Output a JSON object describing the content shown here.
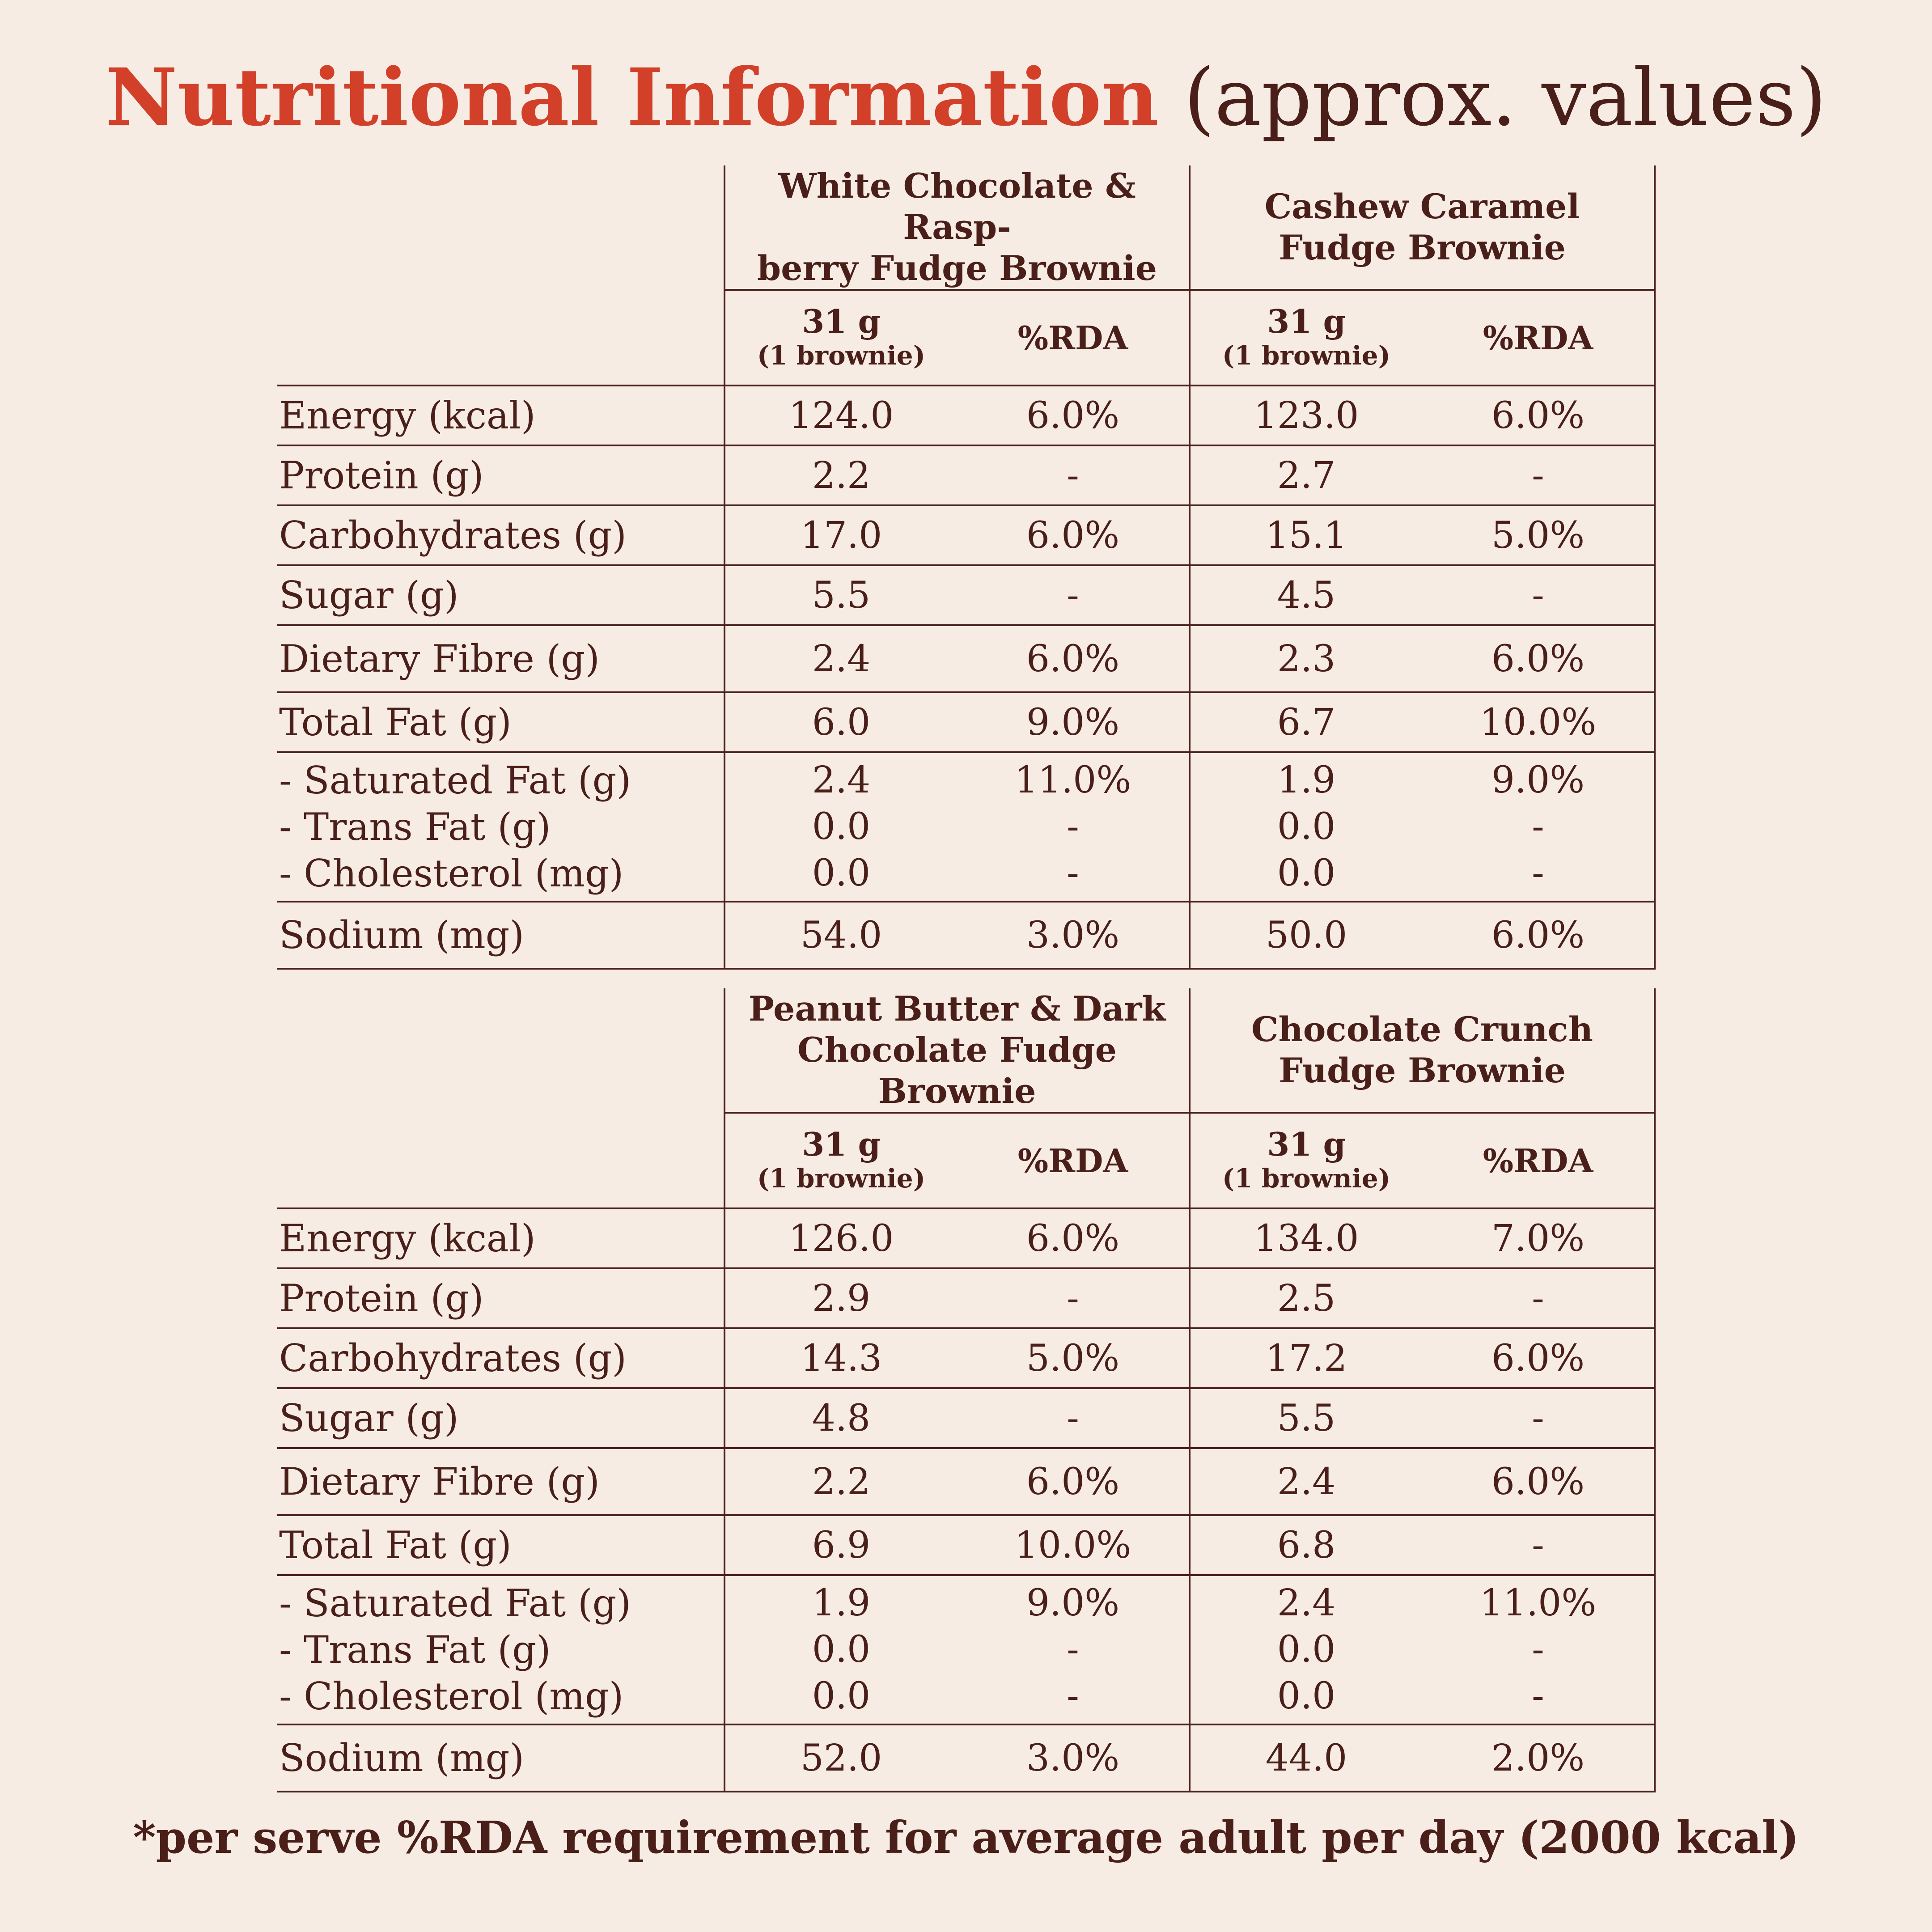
{
  "title": {
    "main": "Nutritional Information",
    "sub": "(approx. values)"
  },
  "serving_label": {
    "line1": "31 g",
    "line2": "(1 brownie)"
  },
  "rda_label": "%RDA",
  "tables": [
    {
      "products": [
        {
          "name_line1": "White Chocolate & Rasp-",
          "name_line2": "berry Fudge Brownie"
        },
        {
          "name_line1": "Cashew Caramel",
          "name_line2": "Fudge Brownie"
        }
      ],
      "rows": [
        {
          "label": "Energy (kcal)",
          "p1": "124.0",
          "r1": "6.0%",
          "p2": "123.0",
          "r2": "6.0%"
        },
        {
          "label": "Protein (g)",
          "p1": "2.2",
          "r1": "-",
          "p2": "2.7",
          "r2": "-"
        },
        {
          "label": "Carbohydrates (g)",
          "p1": "17.0",
          "r1": "6.0%",
          "p2": "15.1",
          "r2": "5.0%"
        },
        {
          "label": "Sugar (g)",
          "p1": "5.5",
          "r1": "-",
          "p2": "4.5",
          "r2": "-"
        },
        {
          "label": "Dietary Fibre (g)",
          "p1": "2.4",
          "r1": "6.0%",
          "p2": "2.3",
          "r2": "6.0%"
        },
        {
          "label": "Total Fat (g)",
          "p1": "6.0",
          "r1": "9.0%",
          "p2": "6.7",
          "r2": "10.0%"
        }
      ],
      "fat_group": [
        {
          "label": "- Saturated Fat (g)",
          "p1": "2.4",
          "r1": "11.0%",
          "p2": "1.9",
          "r2": "9.0%"
        },
        {
          "label": "- Trans Fat (g)",
          "p1": "0.0",
          "r1": "-",
          "p2": "0.0",
          "r2": "-"
        },
        {
          "label": "- Cholesterol (mg)",
          "p1": "0.0",
          "r1": "-",
          "p2": "0.0",
          "r2": "-"
        }
      ],
      "sodium": {
        "label": "Sodium (mg)",
        "p1": "54.0",
        "r1": "3.0%",
        "p2": "50.0",
        "r2": "6.0%"
      }
    },
    {
      "products": [
        {
          "name_line1": "Peanut Butter & Dark",
          "name_line2": "Chocolate Fudge Brownie"
        },
        {
          "name_line1": "Chocolate Crunch",
          "name_line2": "Fudge Brownie"
        }
      ],
      "rows": [
        {
          "label": "Energy (kcal)",
          "p1": "126.0",
          "r1": "6.0%",
          "p2": "134.0",
          "r2": "7.0%"
        },
        {
          "label": "Protein (g)",
          "p1": "2.9",
          "r1": "-",
          "p2": "2.5",
          "r2": "-"
        },
        {
          "label": "Carbohydrates (g)",
          "p1": "14.3",
          "r1": "5.0%",
          "p2": "17.2",
          "r2": "6.0%"
        },
        {
          "label": "Sugar (g)",
          "p1": "4.8",
          "r1": "-",
          "p2": "5.5",
          "r2": "-"
        },
        {
          "label": "Dietary Fibre (g)",
          "p1": "2.2",
          "r1": "6.0%",
          "p2": "2.4",
          "r2": "6.0%"
        },
        {
          "label": "Total Fat (g)",
          "p1": "6.9",
          "r1": "10.0%",
          "p2": "6.8",
          "r2": "-"
        }
      ],
      "fat_group": [
        {
          "label": "- Saturated Fat (g)",
          "p1": "1.9",
          "r1": "9.0%",
          "p2": "2.4",
          "r2": "11.0%"
        },
        {
          "label": "- Trans Fat (g)",
          "p1": "0.0",
          "r1": "-",
          "p2": "0.0",
          "r2": "-"
        },
        {
          "label": "- Cholesterol (mg)",
          "p1": "0.0",
          "r1": "-",
          "p2": "0.0",
          "r2": "-"
        }
      ],
      "sodium": {
        "label": "Sodium (mg)",
        "p1": "52.0",
        "r1": "3.0%",
        "p2": "44.0",
        "r2": "2.0%"
      }
    }
  ],
  "footnote": "*per serve %RDA requirement for average adult per day (2000 kcal)"
}
